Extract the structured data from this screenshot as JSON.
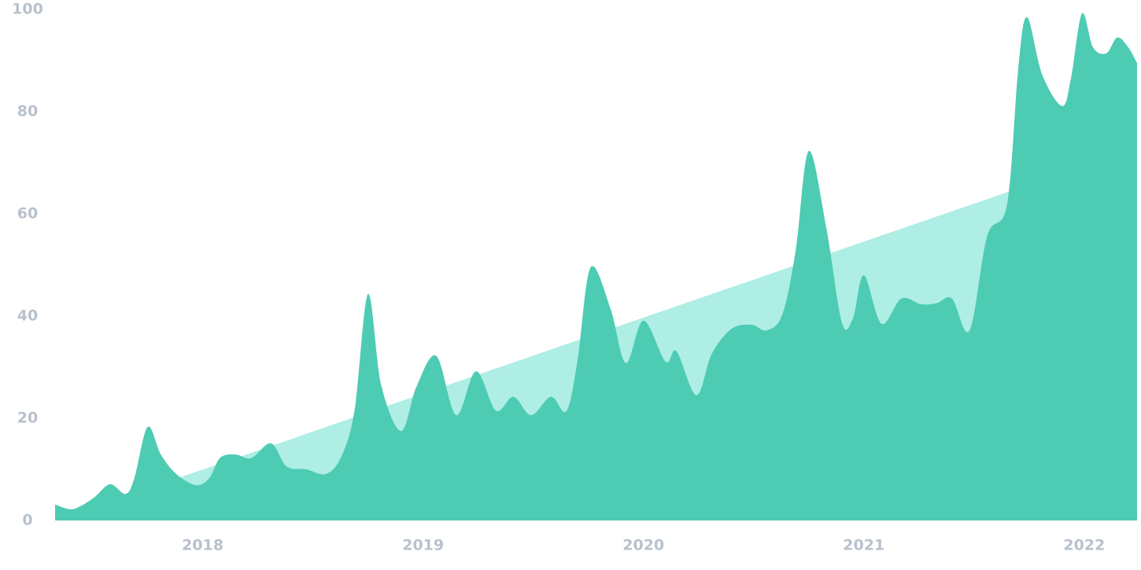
{
  "chart_data": {
    "type": "area",
    "xlim": [
      2017.33,
      2022.24
    ],
    "xticks": [
      2018,
      2019,
      2020,
      2021,
      2022
    ],
    "ylim": [
      0,
      100
    ],
    "yticks": [
      0,
      20,
      40,
      60,
      80,
      100
    ],
    "grid": false,
    "series": [
      {
        "color": "#aeeee4",
        "x": [
          2017.33,
          2022.24
        ],
        "values": [
          0,
          73
        ]
      },
      {
        "color": "#4ecbb3",
        "x": [
          2017.33,
          2017.4,
          2017.45,
          2017.51,
          2017.58,
          2017.65,
          2017.69,
          2017.75,
          2017.81,
          2017.88,
          2017.97,
          2018.03,
          2018.08,
          2018.15,
          2018.22,
          2018.31,
          2018.38,
          2018.47,
          2018.56,
          2018.63,
          2018.69,
          2018.75,
          2018.81,
          2018.9,
          2018.97,
          2019.06,
          2019.15,
          2019.24,
          2019.33,
          2019.41,
          2019.49,
          2019.58,
          2019.65,
          2019.7,
          2019.76,
          2019.85,
          2019.92,
          2020.0,
          2020.1,
          2020.15,
          2020.24,
          2020.31,
          2020.4,
          2020.49,
          2020.56,
          2020.63,
          2020.69,
          2020.75,
          2020.83,
          2020.9,
          2020.95,
          2021.0,
          2021.08,
          2021.17,
          2021.26,
          2021.33,
          2021.4,
          2021.48,
          2021.56,
          2021.65,
          2021.7,
          2021.74,
          2021.81,
          2021.9,
          2021.94,
          2021.99,
          2022.04,
          2022.1,
          2022.15,
          2022.2,
          2022.24
        ],
        "values": [
          3.1,
          2.2,
          2.9,
          4.6,
          7.1,
          5.2,
          8.3,
          18.3,
          12.9,
          9.1,
          6.9,
          8.3,
          12.3,
          12.9,
          12.2,
          15.1,
          10.6,
          10,
          9.1,
          12.6,
          21.8,
          44.3,
          26.5,
          17.5,
          26.2,
          32.2,
          20.6,
          29.2,
          21.5,
          24.2,
          20.6,
          24.2,
          21.4,
          31.1,
          49.5,
          41.5,
          30.8,
          39.1,
          31.1,
          33.1,
          24.5,
          32.6,
          37.5,
          38.3,
          37.2,
          40.3,
          52.6,
          72.3,
          57.2,
          38.8,
          39.5,
          48,
          38.5,
          43.4,
          42.3,
          42.5,
          43.4,
          37.2,
          55.7,
          61.8,
          88,
          98.5,
          87.2,
          81.1,
          86.5,
          99.2,
          92.6,
          91.4,
          94.5,
          92.6,
          89.5
        ]
      }
    ]
  }
}
